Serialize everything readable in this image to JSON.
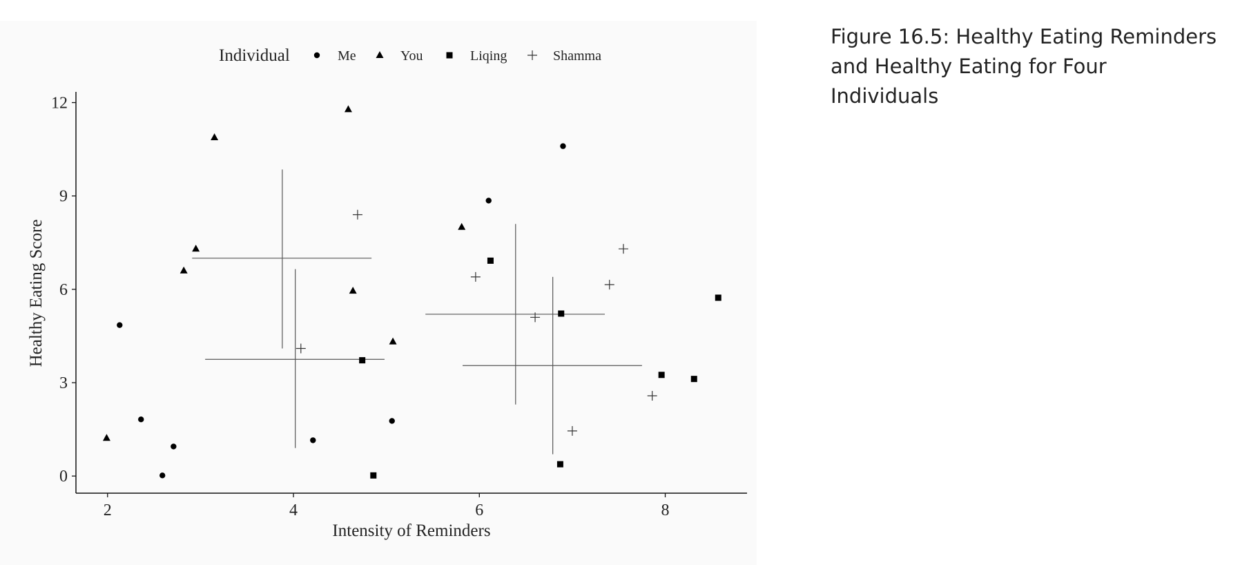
{
  "caption": "Figure 16.5: Healthy Eating Reminders and Healthy Eating for Four Individuals",
  "chart_data": {
    "type": "scatter",
    "title": "",
    "xlabel": "Intensity of Reminders",
    "ylabel": "Healthy Eating Score",
    "xlim": [
      1.66,
      8.88
    ],
    "ylim": [
      -0.55,
      12.3
    ],
    "xticks": [
      2,
      4,
      6,
      8
    ],
    "yticks": [
      0,
      3,
      6,
      9,
      12
    ],
    "grid": false,
    "legend": {
      "title": "Individual",
      "position": "top"
    },
    "colors": {
      "points": "#000000",
      "crosshairs": "#555555",
      "background": "#fafafa"
    },
    "series": [
      {
        "name": "Me",
        "marker": "circle",
        "points": [
          [
            2.13,
            4.85
          ],
          [
            2.36,
            1.82
          ],
          [
            2.59,
            0.02
          ],
          [
            2.71,
            0.95
          ],
          [
            4.21,
            1.15
          ],
          [
            5.06,
            1.77
          ],
          [
            6.1,
            8.85
          ],
          [
            6.9,
            10.6
          ]
        ]
      },
      {
        "name": "You",
        "marker": "triangle",
        "points": [
          [
            1.99,
            1.22
          ],
          [
            2.82,
            6.6
          ],
          [
            2.95,
            7.3
          ],
          [
            3.15,
            10.88
          ],
          [
            4.59,
            11.78
          ],
          [
            4.64,
            5.95
          ],
          [
            5.07,
            4.32
          ],
          [
            5.81,
            8.0
          ]
        ]
      },
      {
        "name": "Liqing",
        "marker": "square",
        "points": [
          [
            4.74,
            3.72
          ],
          [
            4.86,
            0.02
          ],
          [
            6.12,
            6.92
          ],
          [
            6.87,
            0.38
          ],
          [
            6.88,
            5.22
          ],
          [
            7.96,
            3.25
          ],
          [
            8.31,
            3.12
          ],
          [
            8.57,
            5.73
          ]
        ]
      },
      {
        "name": "Shamma",
        "marker": "plus",
        "points": [
          [
            4.08,
            4.1
          ],
          [
            4.69,
            8.4
          ],
          [
            5.96,
            6.4
          ],
          [
            6.6,
            5.1
          ],
          [
            7.0,
            1.45
          ],
          [
            7.4,
            6.15
          ],
          [
            7.55,
            7.3
          ],
          [
            7.86,
            2.58
          ]
        ]
      }
    ],
    "crosshairs": [
      {
        "cx": 3.88,
        "cy": 7.0,
        "x_range": [
          2.91,
          4.84
        ],
        "y_range": [
          4.1,
          9.85
        ]
      },
      {
        "cx": 4.02,
        "cy": 3.75,
        "x_range": [
          3.05,
          4.98
        ],
        "y_range": [
          0.9,
          6.65
        ]
      },
      {
        "cx": 6.39,
        "cy": 5.2,
        "x_range": [
          5.42,
          7.35
        ],
        "y_range": [
          2.3,
          8.1
        ]
      },
      {
        "cx": 6.79,
        "cy": 3.55,
        "x_range": [
          5.82,
          7.75
        ],
        "y_range": [
          0.7,
          6.4
        ]
      }
    ]
  }
}
